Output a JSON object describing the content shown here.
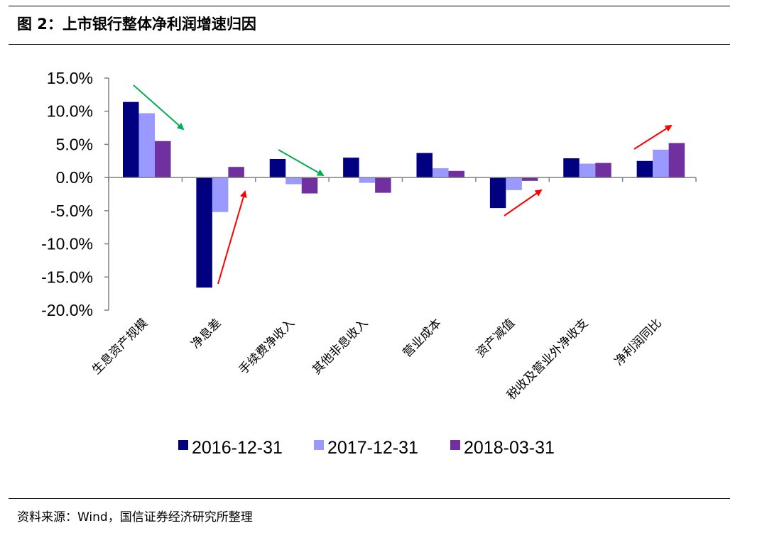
{
  "header": {
    "title": "图 2：上市银行整体净利润增速归因"
  },
  "footer": {
    "source": "资料来源：Wind，国信证券经济研究所整理"
  },
  "chart_data": {
    "type": "bar",
    "categories": [
      "生息资产规模",
      "净息差",
      "手续费净收入",
      "其他非息收入",
      "营业成本",
      "资产减值",
      "税收及营业外净收支",
      "净利润同比"
    ],
    "series": [
      {
        "name": "2016-12-31",
        "color": "#000080",
        "values": [
          11.4,
          -16.6,
          2.8,
          3.0,
          3.7,
          -4.6,
          2.9,
          2.5
        ]
      },
      {
        "name": "2017-12-31",
        "color": "#9999FF",
        "values": [
          9.7,
          -5.2,
          -1.0,
          -0.8,
          1.4,
          -1.9,
          2.1,
          4.2
        ]
      },
      {
        "name": "2018-03-31",
        "color": "#7030A0",
        "values": [
          5.5,
          1.6,
          -2.4,
          -2.3,
          1.0,
          -0.5,
          2.2,
          5.2
        ]
      }
    ],
    "ylim": [
      -20,
      15
    ],
    "yticks": [
      "15.0%",
      "10.0%",
      "5.0%",
      "0.0%",
      "-5.0%",
      "-10.0%",
      "-15.0%",
      "-20.0%"
    ],
    "y_tick_values": [
      15,
      10,
      5,
      0,
      -5,
      -10,
      -15,
      -20
    ],
    "legend_position": "bottom",
    "grid": false,
    "annotations": [
      {
        "type": "arrow",
        "color": "#00B050",
        "direction": "down",
        "category": "生息资产规模"
      },
      {
        "type": "arrow",
        "color": "#FF0000",
        "direction": "up",
        "category": "净息差"
      },
      {
        "type": "arrow",
        "color": "#00B050",
        "direction": "down",
        "category": "手续费净收入"
      },
      {
        "type": "arrow",
        "color": "#FF0000",
        "direction": "up",
        "category": "资产减值"
      },
      {
        "type": "arrow",
        "color": "#FF0000",
        "direction": "up",
        "category": "净利润同比"
      }
    ]
  }
}
